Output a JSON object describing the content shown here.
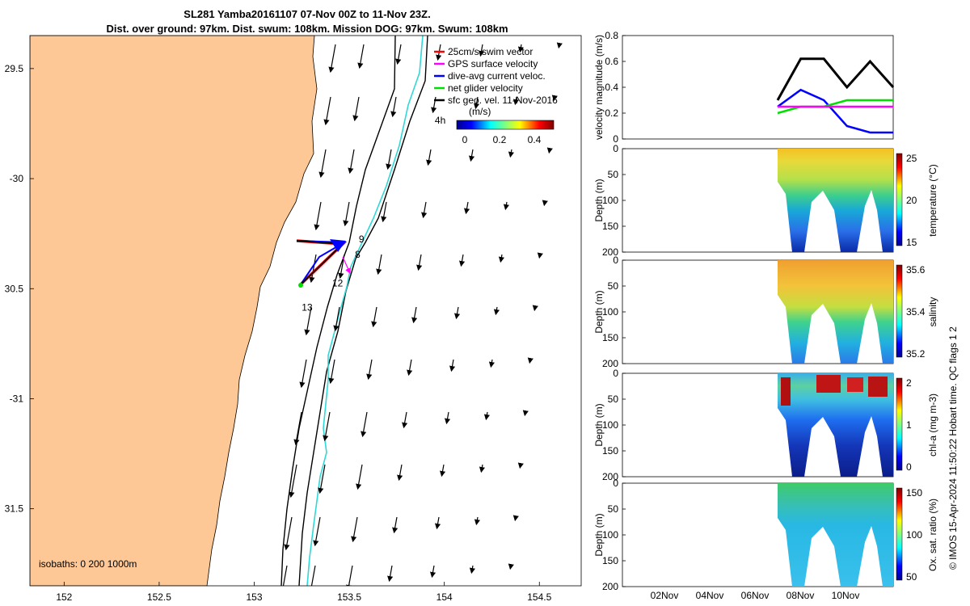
{
  "title": {
    "line1": "SL281 Yamba20161107 07-Nov 00Z to 11-Nov 23Z.",
    "line2": "Dist. over ground: 97km. Dist. swum: 108km. Mission DOG: 97km. Swum: 108km"
  },
  "map": {
    "xlim": [
      151.82,
      154.72
    ],
    "ylim": [
      -31.85,
      -29.35
    ],
    "yticks": [
      {
        "v": -29.5,
        "label": "29.5"
      },
      {
        "v": -30,
        "label": "-30"
      },
      {
        "v": -30.5,
        "label": "30.5"
      },
      {
        "v": -31,
        "label": "-31"
      },
      {
        "v": -31.5,
        "label": "31.5"
      }
    ],
    "xticks": [
      {
        "v": 152,
        "label": "152"
      },
      {
        "v": 152.5,
        "label": "152.5"
      },
      {
        "v": 153,
        "label": "153"
      },
      {
        "v": 153.5,
        "label": "153.5"
      },
      {
        "v": 154,
        "label": "154"
      },
      {
        "v": 154.5,
        "label": "154.5"
      }
    ],
    "land_color": "#fdc896",
    "legend": [
      {
        "label": "25cm/s swim vector",
        "color": "#ff0000"
      },
      {
        "label": "GPS surface velocity",
        "color": "#ff00ff"
      },
      {
        "label": "dive-avg current veloc.",
        "color": "#0000ff"
      },
      {
        "label": "net glider velocity",
        "color": "#00e000"
      },
      {
        "label": "sfc geo. vel. 11-Nov-2016",
        "color": "#000000"
      }
    ],
    "colorbar": {
      "title": "(m/s)",
      "ticks": [
        "0",
        "0.2",
        "0.4"
      ]
    },
    "isobath_label": "isobaths: 0   200  1000m",
    "day_labels": [
      {
        "label": "9",
        "lon": 153.55,
        "lat": -30.29
      },
      {
        "label": "8",
        "lon": 153.53,
        "lat": -30.36
      },
      {
        "label": "12",
        "lon": 153.41,
        "lat": -30.49
      },
      {
        "label": "13",
        "lon": 153.25,
        "lat": -30.6
      },
      {
        "label": "4h",
        "lon": 153.95,
        "lat": -29.75
      }
    ]
  },
  "panels": [
    {
      "id": "velocity",
      "ylabel": "velocity magnitude (m/s)",
      "yticks": [
        "0",
        "0.2",
        "0.4",
        "0.6",
        "0.8"
      ]
    },
    {
      "id": "temperature",
      "ylabel": "Depth (m)",
      "clabel": "temperature (°C)",
      "yticks": [
        "0",
        "50",
        "100",
        "150",
        "200"
      ],
      "cticks": [
        "25",
        "20",
        "15"
      ]
    },
    {
      "id": "salinity",
      "ylabel": "Depth (m)",
      "clabel": "salinity",
      "yticks": [
        "0",
        "50",
        "100",
        "150",
        "200"
      ],
      "cticks": [
        "35.6",
        "35.4",
        "35.2"
      ]
    },
    {
      "id": "chla",
      "ylabel": "Depth (m)",
      "clabel": "chl-a (mg m-3)",
      "yticks": [
        "0",
        "50",
        "100",
        "150",
        "200"
      ],
      "cticks": [
        "2",
        "1",
        "0"
      ]
    },
    {
      "id": "oxygen",
      "ylabel": "Depth (m)",
      "clabel": "Ox. sat. ratio (%)",
      "yticks": [
        "0",
        "50",
        "100",
        "150",
        "200"
      ],
      "cticks": [
        "150",
        "100",
        "50"
      ]
    }
  ],
  "time_axis": [
    "02Nov",
    "04Nov",
    "06Nov",
    "08Nov",
    "10Nov"
  ],
  "credit": "© IMOS 15-Apr-2024 11:50:22 Hobart time. QC flags 1  2",
  "chart_data": [
    {
      "type": "line",
      "title": "",
      "xlabel": "",
      "ylabel": "velocity magnitude (m/s)",
      "ylim": [
        0,
        0.8
      ],
      "x": [
        "07Nov",
        "08Nov",
        "09Nov",
        "10Nov",
        "11Nov",
        "12Nov"
      ],
      "series": [
        {
          "color": "#000000",
          "values": [
            0.3,
            0.62,
            0.62,
            0.4,
            0.6,
            0.4
          ]
        },
        {
          "color": "#0000ff",
          "values": [
            0.25,
            0.38,
            0.3,
            0.1,
            0.05,
            0.05
          ]
        },
        {
          "color": "#00e000",
          "values": [
            0.2,
            0.25,
            0.25,
            0.3,
            0.3,
            0.3
          ]
        },
        {
          "color": "#ff00ff",
          "values": [
            0.25,
            0.25,
            0.25,
            0.25,
            0.25,
            0.25
          ]
        }
      ]
    },
    {
      "type": "heatmap",
      "ylabel": "Depth (m)",
      "colorbar_label": "temperature (°C)",
      "clim": [
        13,
        26
      ],
      "ylim": [
        200,
        0
      ],
      "x": [
        "07Nov",
        "12Nov"
      ]
    },
    {
      "type": "heatmap",
      "ylabel": "Depth (m)",
      "colorbar_label": "salinity",
      "clim": [
        35.1,
        35.7
      ],
      "ylim": [
        200,
        0
      ],
      "x": [
        "07Nov",
        "12Nov"
      ]
    },
    {
      "type": "heatmap",
      "ylabel": "Depth (m)",
      "colorbar_label": "chl-a (mg m-3)",
      "clim": [
        0,
        2
      ],
      "ylim": [
        200,
        0
      ],
      "x": [
        "07Nov",
        "12Nov"
      ]
    },
    {
      "type": "heatmap",
      "ylabel": "Depth (m)",
      "colorbar_label": "Ox. sat. ratio (%)",
      "clim": [
        25,
        175
      ],
      "ylim": [
        200,
        0
      ],
      "x": [
        "07Nov",
        "12Nov"
      ]
    }
  ]
}
